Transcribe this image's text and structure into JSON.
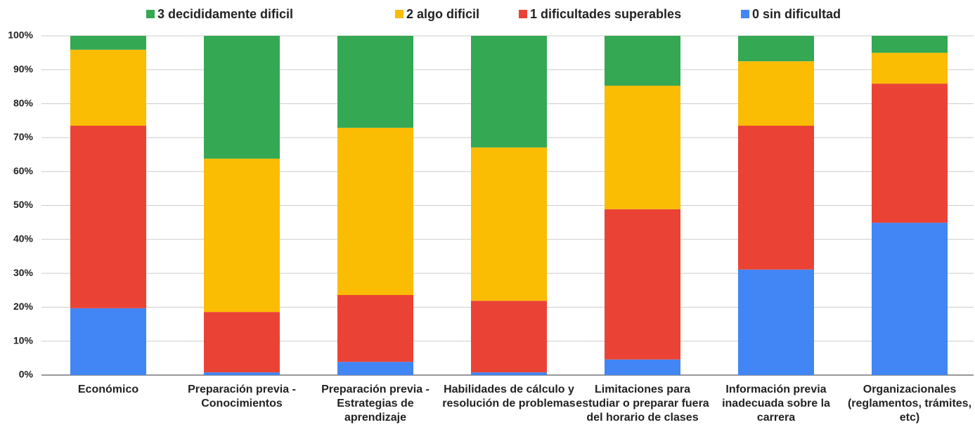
{
  "chart_data": {
    "type": "stacked_bar_100",
    "categories": [
      "Económico",
      "Preparación previa - Conocimientos",
      "Preparación previa - Estrategias de aprendizaje",
      "Habilidades de cálculo y resolución de problemas",
      "Limitaciones para estudiar o preparar fuera del horario de clases",
      "Información previa inadecuada sobre la carrera",
      "Organizacionales (reglamentos, trámites, etc)"
    ],
    "series": [
      {
        "name": "0 sin dificultad",
        "color": "#4285f4",
        "values": [
          19.7,
          0.8,
          3.9,
          0.8,
          4.6,
          31.1,
          44.9
        ]
      },
      {
        "name": "1 dificultades superables",
        "color": "#ea4335",
        "values": [
          53.8,
          17.8,
          19.7,
          21.1,
          44.3,
          42.4,
          41.0
        ]
      },
      {
        "name": "2 algo dificil",
        "color": "#fbbc04",
        "values": [
          22.4,
          45.2,
          49.3,
          45.2,
          36.4,
          19.0,
          9.1
        ]
      },
      {
        "name": "3 decididamente dificil",
        "color": "#34a853",
        "values": [
          4.1,
          36.2,
          27.1,
          32.9,
          14.7,
          7.5,
          5.0
        ]
      }
    ],
    "ylim": [
      0,
      100
    ],
    "yticks": [
      {
        "value": 0,
        "label": "0%"
      },
      {
        "value": 10,
        "label": "10%"
      },
      {
        "value": 20,
        "label": "20%"
      },
      {
        "value": 30,
        "label": "30%"
      },
      {
        "value": 40,
        "label": "40%"
      },
      {
        "value": 50,
        "label": "50%"
      },
      {
        "value": 60,
        "label": "60%"
      },
      {
        "value": 70,
        "label": "70%"
      },
      {
        "value": 80,
        "label": "80%"
      },
      {
        "value": 90,
        "label": "90%"
      },
      {
        "value": 100,
        "label": "100%"
      }
    ],
    "grid": true,
    "legend": "top"
  }
}
